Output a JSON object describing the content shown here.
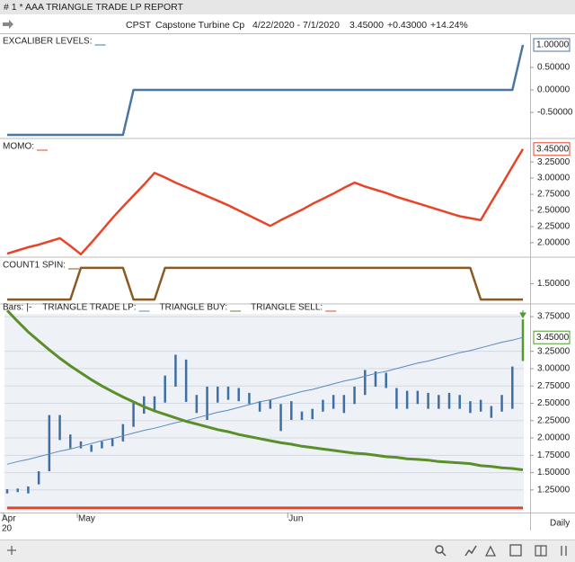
{
  "header": {
    "window_title": "# 1 * AAA  TRIANGLE TRADE LP  REPORT",
    "symbol": "CPST",
    "name": "Capstone Turbine Cp",
    "range": "4/22/2020 - 7/1/2020",
    "last": "3.45000",
    "change": "+0.43000",
    "change_pct": "+14.24%"
  },
  "x_axis": {
    "categories": [
      "Apr",
      null,
      null,
      null,
      null,
      null,
      null,
      "May",
      null,
      null,
      null,
      null,
      null,
      null,
      null,
      null,
      null,
      null,
      null,
      null,
      null,
      null,
      null,
      null,
      null,
      null,
      null,
      "Jun",
      null,
      null,
      null,
      null,
      null,
      null,
      null,
      null,
      null,
      null,
      null,
      null,
      null,
      null,
      null,
      null,
      null,
      null,
      null,
      null,
      null,
      null
    ],
    "year": "20",
    "period": "Daily"
  },
  "chart_data": [
    {
      "type": "line",
      "title": "EXCALIBER LEVELS:",
      "color": "#4a76a4",
      "ylim": [
        -1.06,
        1.24
      ],
      "yticks": [
        {
          "value": 0.5,
          "label": "0.50000"
        },
        {
          "value": 0,
          "label": "0.00000"
        },
        {
          "value": -0.5,
          "label": "-0.50000"
        }
      ],
      "current_label": "1.00000",
      "values": [
        -1,
        -1,
        -1,
        -1,
        -1,
        -1,
        -1,
        -1,
        -1,
        -1,
        -1,
        -1,
        0,
        0,
        0,
        0,
        0,
        0,
        0,
        0,
        0,
        0,
        0,
        0,
        0,
        0,
        0,
        0,
        0,
        0,
        0,
        0,
        0,
        0,
        0,
        0,
        0,
        0,
        0,
        0,
        0,
        0,
        0,
        0,
        0,
        0,
        0,
        0,
        0,
        1
      ]
    },
    {
      "type": "line",
      "title": "MOMO:",
      "color": "#e8442a",
      "ylim": [
        1.79,
        3.6
      ],
      "yticks": [
        {
          "value": 3.25,
          "label": "3.25000"
        },
        {
          "value": 3,
          "label": "3.00000"
        },
        {
          "value": 2.75,
          "label": "2.75000"
        },
        {
          "value": 2.5,
          "label": "2.50000"
        },
        {
          "value": 2.25,
          "label": "2.25000"
        },
        {
          "value": 2,
          "label": "2.00000"
        }
      ],
      "current_label": "3.45000",
      "values": [
        1.83,
        1.88,
        1.93,
        1.97,
        2.02,
        2.07,
        1.95,
        1.82,
        2.0,
        2.19,
        2.38,
        2.56,
        2.73,
        2.9,
        3.08,
        3.01,
        2.93,
        2.86,
        2.79,
        2.72,
        2.65,
        2.58,
        2.5,
        2.42,
        2.34,
        2.26,
        2.35,
        2.43,
        2.51,
        2.6,
        2.68,
        2.76,
        2.85,
        2.93,
        2.87,
        2.82,
        2.77,
        2.71,
        2.66,
        2.61,
        2.56,
        2.51,
        2.46,
        2.41,
        2.38,
        2.35,
        2.63,
        2.9,
        3.18,
        3.45
      ]
    },
    {
      "type": "line",
      "title": "COUNT1 SPIN:",
      "color": "#8a5a22",
      "ylim": [
        0.89,
        2.31
      ],
      "yticks": [
        {
          "value": 1.5,
          "label": "1.50000"
        }
      ],
      "values": [
        1,
        1,
        1,
        1,
        1,
        1,
        1,
        2,
        2,
        2,
        2,
        2,
        1,
        1,
        1,
        2,
        2,
        2,
        2,
        2,
        2,
        2,
        2,
        2,
        2,
        2,
        2,
        2,
        2,
        2,
        2,
        2,
        2,
        2,
        2,
        2,
        2,
        2,
        2,
        2,
        2,
        2,
        2,
        2,
        2,
        1,
        1,
        1,
        1,
        1
      ]
    },
    {
      "type": "ohlc",
      "title": "Bars:",
      "symbol": "|-",
      "ylim": [
        0.95,
        3.92
      ],
      "grid": true,
      "yticks": [
        {
          "value": 3.75,
          "label": "3.75000"
        },
        {
          "value": 3.25,
          "label": "3.25000"
        },
        {
          "value": 3,
          "label": "3.00000"
        },
        {
          "value": 2.75,
          "label": "2.75000"
        },
        {
          "value": 2.5,
          "label": "2.50000"
        },
        {
          "value": 2.25,
          "label": "2.25000"
        },
        {
          "value": 2,
          "label": "2.00000"
        },
        {
          "value": 1.75,
          "label": "1.75000"
        },
        {
          "value": 1.5,
          "label": "1.50000"
        },
        {
          "value": 1.25,
          "label": "1.25000"
        }
      ],
      "last": 3.45,
      "current_label": "3.45000",
      "current_color": "#4e9a2e",
      "high": [
        1.26,
        1.27,
        1.3,
        1.52,
        2.33,
        2.33,
        2.05,
        1.95,
        1.9,
        1.95,
        2.0,
        2.2,
        2.53,
        2.6,
        2.6,
        2.9,
        3.2,
        3.13,
        2.62,
        2.74,
        2.74,
        2.74,
        2.72,
        2.65,
        2.53,
        2.55,
        2.49,
        2.53,
        2.38,
        2.42,
        2.55,
        2.62,
        2.62,
        2.74,
        2.98,
        2.96,
        2.94,
        2.72,
        2.68,
        2.68,
        2.65,
        2.62,
        2.65,
        2.62,
        2.53,
        2.55,
        2.46,
        2.62,
        3.03,
        3.71
      ],
      "low": [
        1.2,
        1.22,
        1.2,
        1.33,
        1.52,
        1.97,
        1.85,
        1.85,
        1.8,
        1.85,
        1.88,
        1.95,
        2.16,
        2.35,
        2.4,
        2.51,
        2.74,
        2.52,
        2.36,
        2.26,
        2.51,
        2.55,
        2.53,
        2.49,
        2.38,
        2.42,
        2.1,
        2.26,
        2.26,
        2.27,
        2.38,
        2.42,
        2.36,
        2.49,
        2.62,
        2.74,
        2.72,
        2.42,
        2.42,
        2.49,
        2.42,
        2.42,
        2.42,
        2.42,
        2.36,
        2.38,
        2.29,
        2.38,
        2.42,
        3.11
      ],
      "bar_colors": [
        "#3e6fa3",
        "#3e6fa3",
        "#3e6fa3",
        "#3e6fa3",
        "#3e6fa3",
        "#3e6fa3",
        "#3e6fa3",
        "#3e6fa3",
        "#3e6fa3",
        "#3e6fa3",
        "#3e6fa3",
        "#3e6fa3",
        "#3e6fa3",
        "#3e6fa3",
        "#3e6fa3",
        "#3e6fa3",
        "#3e6fa3",
        "#3e6fa3",
        "#3e6fa3",
        "#3e6fa3",
        "#3e6fa3",
        "#3e6fa3",
        "#3e6fa3",
        "#3e6fa3",
        "#3e6fa3",
        "#3e6fa3",
        "#3e6fa3",
        "#3e6fa3",
        "#3e6fa3",
        "#3e6fa3",
        "#3e6fa3",
        "#3e6fa3",
        "#3e6fa3",
        "#3e6fa3",
        "#3e6fa3",
        "#3e6fa3",
        "#3e6fa3",
        "#3e6fa3",
        "#3e6fa3",
        "#3e6fa3",
        "#3e6fa3",
        "#3e6fa3",
        "#3e6fa3",
        "#3e6fa3",
        "#3e6fa3",
        "#3e6fa3",
        "#3e6fa3",
        "#3e6fa3",
        "#3e6fa3",
        "#4e9a2e"
      ],
      "series": [
        {
          "name": "TRIANGLE TRADE LP:",
          "color": "#5a88c0",
          "width": 1,
          "values": [
            1.62,
            1.66,
            1.69,
            1.73,
            1.77,
            1.81,
            1.84,
            1.88,
            1.92,
            1.96,
            1.99,
            2.03,
            2.07,
            2.11,
            2.14,
            2.18,
            2.22,
            2.25,
            2.29,
            2.33,
            2.37,
            2.4,
            2.44,
            2.48,
            2.52,
            2.55,
            2.59,
            2.63,
            2.67,
            2.7,
            2.74,
            2.78,
            2.82,
            2.85,
            2.89,
            2.93,
            2.96,
            3.0,
            3.04,
            3.08,
            3.11,
            3.15,
            3.19,
            3.23,
            3.26,
            3.3,
            3.34,
            3.38,
            3.41,
            3.45
          ]
        },
        {
          "name": "TRIANGLE BUY:",
          "color": "#5a8f29",
          "width": 3,
          "values": [
            3.84,
            3.68,
            3.53,
            3.4,
            3.27,
            3.15,
            3.04,
            2.94,
            2.84,
            2.75,
            2.67,
            2.59,
            2.52,
            2.45,
            2.39,
            2.34,
            2.29,
            2.24,
            2.2,
            2.16,
            2.12,
            2.09,
            2.05,
            2.02,
            1.99,
            1.96,
            1.93,
            1.91,
            1.88,
            1.86,
            1.84,
            1.82,
            1.8,
            1.78,
            1.77,
            1.75,
            1.73,
            1.72,
            1.7,
            1.69,
            1.68,
            1.66,
            1.65,
            1.64,
            1.63,
            1.6,
            1.59,
            1.57,
            1.56,
            1.54
          ]
        },
        {
          "name": "TRIANGLE SELL:",
          "color": "#e0452b",
          "width": 3,
          "values": [
            0.99,
            0.99,
            0.99,
            0.99,
            0.99,
            0.99,
            0.99,
            0.99,
            0.99,
            0.99,
            0.99,
            0.99,
            0.99,
            0.99,
            0.99,
            0.99,
            0.99,
            0.99,
            0.99,
            0.99,
            0.99,
            0.99,
            0.99,
            0.99,
            0.99,
            0.99,
            0.99,
            0.99,
            0.99,
            0.99,
            0.99,
            0.99,
            0.99,
            0.99,
            0.99,
            0.99,
            0.99,
            0.99,
            0.99,
            0.99,
            0.99,
            0.99,
            0.99,
            0.99,
            0.99,
            0.99,
            0.99,
            0.99,
            0.99,
            0.99
          ]
        }
      ]
    }
  ]
}
